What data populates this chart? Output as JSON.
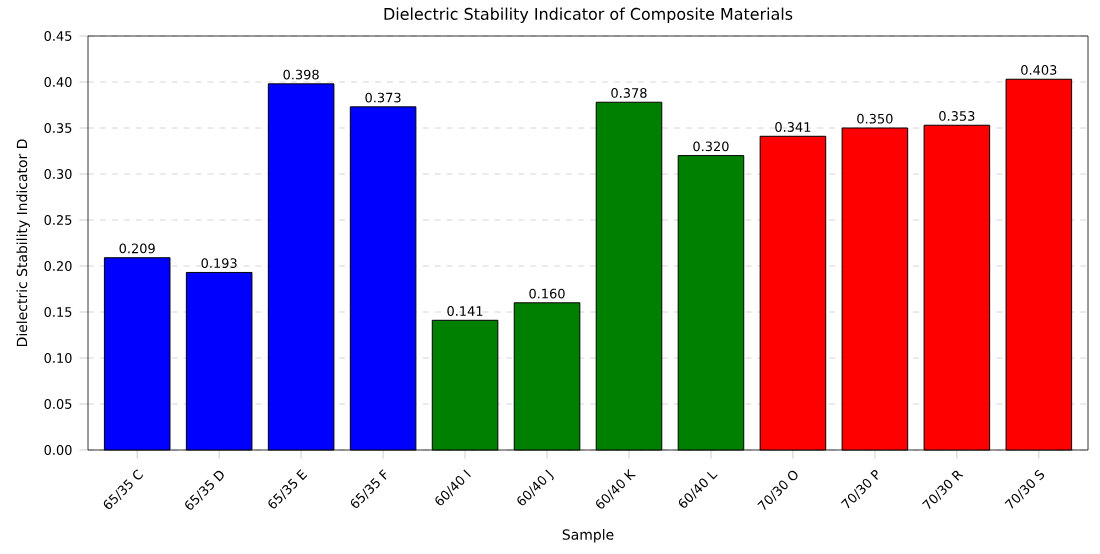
{
  "chart_data": {
    "type": "bar",
    "title": "Dielectric Stability Indicator of Composite Materials",
    "xlabel": "Sample",
    "ylabel": "Dielectric Stability Indicator D",
    "categories": [
      "65/35 C",
      "65/35 D",
      "65/35 E",
      "65/35 F",
      "60/40 I",
      "60/40 J",
      "60/40 K",
      "60/40 L",
      "70/30 O",
      "70/30 P",
      "70/30 R",
      "70/30 S"
    ],
    "values": [
      0.209,
      0.193,
      0.398,
      0.373,
      0.141,
      0.16,
      0.378,
      0.32,
      0.341,
      0.35,
      0.353,
      0.403
    ],
    "colors": [
      "#0000ff",
      "#0000ff",
      "#0000ff",
      "#0000ff",
      "#008000",
      "#008000",
      "#008000",
      "#008000",
      "#ff0000",
      "#ff0000",
      "#ff0000",
      "#ff0000"
    ],
    "ylim": [
      0,
      0.45
    ],
    "yticks": [
      {
        "value": 0,
        "label": "0.00"
      },
      {
        "value": 0.05,
        "label": "0.05"
      },
      {
        "value": 0.1,
        "label": "0.10"
      },
      {
        "value": 0.15,
        "label": "0.15"
      },
      {
        "value": 0.2,
        "label": "0.20"
      },
      {
        "value": 0.25,
        "label": "0.25"
      },
      {
        "value": 0.3,
        "label": "0.30"
      },
      {
        "value": 0.35,
        "label": "0.35"
      },
      {
        "value": 0.4,
        "label": "0.40"
      },
      {
        "value": 0.45,
        "label": "0.45"
      }
    ],
    "value_labels": [
      "0.209",
      "0.193",
      "0.398",
      "0.373",
      "0.141",
      "0.160",
      "0.378",
      "0.320",
      "0.341",
      "0.350",
      "0.353",
      "0.403"
    ],
    "grid": "y"
  }
}
